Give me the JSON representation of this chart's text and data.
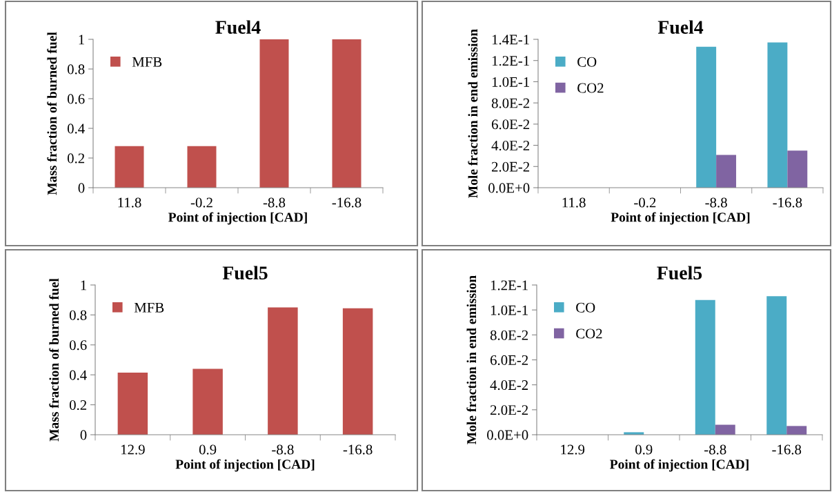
{
  "chart_data": [
    {
      "type": "bar",
      "title": "Fuel4",
      "xlabel": "Point of injection [CAD]",
      "ylabel": "Mass fraction of burned fuel",
      "categories": [
        "11.8",
        "-0.2",
        "-8.8",
        "-16.8"
      ],
      "series": [
        {
          "name": "MFB",
          "color": "#c0504d",
          "values": [
            0.28,
            0.28,
            1.0,
            1.0
          ]
        }
      ],
      "ylim": [
        0,
        1
      ],
      "yticks": [
        0,
        0.2,
        0.4,
        0.6,
        0.8,
        1
      ],
      "grid": false,
      "legend": "top left"
    },
    {
      "type": "bar",
      "title": "Fuel4",
      "xlabel": "Point of injection [CAD]",
      "ylabel": "Mole fraction in end emission",
      "categories": [
        "11.8",
        "-0.2",
        "-8.8",
        "-16.8"
      ],
      "series": [
        {
          "name": "CO",
          "color": "#4bacc6",
          "values": [
            0,
            0,
            0.133,
            0.137
          ]
        },
        {
          "name": "CO2",
          "color": "#8064a2",
          "values": [
            0,
            0,
            0.031,
            0.035
          ]
        }
      ],
      "ylim": [
        0,
        0.14
      ],
      "yticks": [
        {
          "value": 0,
          "label": "0.0E+0"
        },
        {
          "value": 0.02,
          "label": "2.0E-2"
        },
        {
          "value": 0.04,
          "label": "4.0E-2"
        },
        {
          "value": 0.06,
          "label": "6.0E-2"
        },
        {
          "value": 0.08,
          "label": "8.0E-2"
        },
        {
          "value": 0.1,
          "label": "1.0E-1"
        },
        {
          "value": 0.12,
          "label": "1.2E-1"
        },
        {
          "value": 0.14,
          "label": "1.4E-1"
        }
      ],
      "grid": false,
      "legend": "top left"
    },
    {
      "type": "bar",
      "title": "Fuel5",
      "xlabel": "Point of injection [CAD]",
      "ylabel": "Mass fraction of burned fuel",
      "categories": [
        "12.9",
        "0.9",
        "-8.8",
        "-16.8"
      ],
      "series": [
        {
          "name": "MFB",
          "color": "#c0504d",
          "values": [
            0.415,
            0.44,
            0.85,
            0.845
          ]
        }
      ],
      "ylim": [
        0,
        1
      ],
      "yticks": [
        0,
        0.2,
        0.4,
        0.6,
        0.8,
        1
      ],
      "grid": false,
      "legend": "top left"
    },
    {
      "type": "bar",
      "title": "Fuel5",
      "xlabel": "Point of injection [CAD]",
      "ylabel": "Mole fraction in end emission",
      "categories": [
        "12.9",
        "0.9",
        "-8.8",
        "-16.8"
      ],
      "series": [
        {
          "name": "CO",
          "color": "#4bacc6",
          "values": [
            0,
            0.002,
            0.108,
            0.111
          ]
        },
        {
          "name": "CO2",
          "color": "#8064a2",
          "values": [
            0,
            0,
            0.008,
            0.007
          ]
        }
      ],
      "ylim": [
        0,
        0.12
      ],
      "yticks": [
        {
          "value": 0,
          "label": "0.0E+0"
        },
        {
          "value": 0.02,
          "label": "2.0E-2"
        },
        {
          "value": 0.04,
          "label": "4.0E-2"
        },
        {
          "value": 0.06,
          "label": "6.0E-2"
        },
        {
          "value": 0.08,
          "label": "8.0E-2"
        },
        {
          "value": 0.1,
          "label": "1.0E-1"
        },
        {
          "value": 0.12,
          "label": "1.2E-1"
        }
      ],
      "grid": false,
      "legend": "top left"
    }
  ]
}
